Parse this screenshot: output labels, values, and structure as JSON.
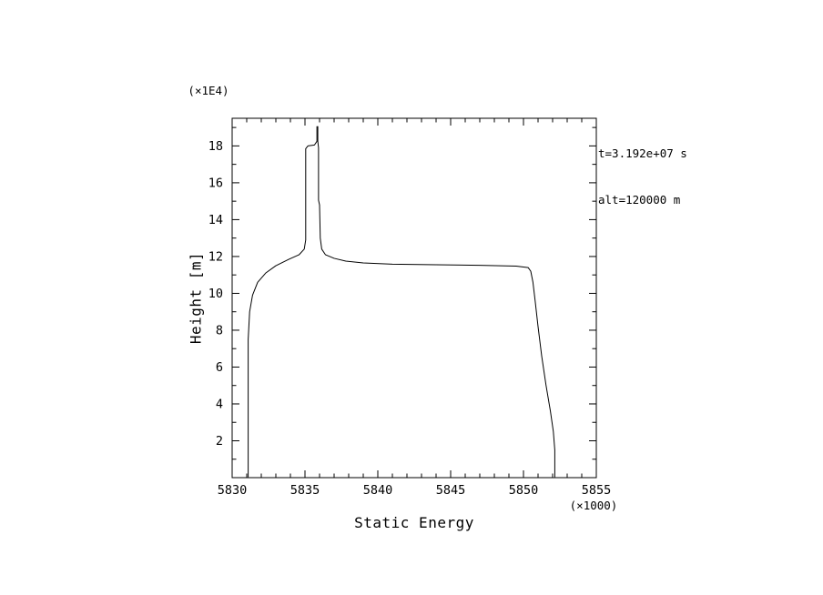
{
  "chart_data": {
    "type": "line",
    "title": "",
    "xlabel": "Static Energy",
    "ylabel": "Height [m]",
    "x_scale_label": "(×1000)",
    "y_scale_label": "(×1E4)",
    "annotations": {
      "line1": "t=3.192e+07 s",
      "line2": "alt=120000 m"
    },
    "xlim": [
      5830,
      5855
    ],
    "ylim": [
      0,
      19.5
    ],
    "x_major_ticks": [
      5830,
      5835,
      5840,
      5845,
      5850,
      5855
    ],
    "x_minor_step": 1,
    "y_major_ticks": [
      2,
      4,
      6,
      8,
      10,
      12,
      14,
      16,
      18
    ],
    "y_minor_step": 1,
    "grid": false,
    "legend_position": "none",
    "line_color": "#000000",
    "background_color": "#ffffff",
    "series": [
      {
        "name": "static-energy-profile-left",
        "points": [
          [
            5831.1,
            0.05
          ],
          [
            5831.1,
            7.5
          ],
          [
            5831.2,
            9.0
          ],
          [
            5831.4,
            9.9
          ],
          [
            5831.75,
            10.6
          ],
          [
            5832.3,
            11.1
          ],
          [
            5833.0,
            11.5
          ],
          [
            5833.9,
            11.85
          ],
          [
            5834.6,
            12.1
          ],
          [
            5834.95,
            12.4
          ],
          [
            5835.05,
            12.9
          ],
          [
            5835.05,
            17.85
          ],
          [
            5835.2,
            18.0
          ],
          [
            5835.65,
            18.05
          ],
          [
            5835.82,
            18.25
          ],
          [
            5835.82,
            19.05
          ]
        ]
      },
      {
        "name": "static-energy-profile-right",
        "points": [
          [
            5852.15,
            0.05
          ],
          [
            5852.15,
            1.5
          ],
          [
            5852.05,
            2.5
          ],
          [
            5851.85,
            3.6
          ],
          [
            5851.55,
            5.0
          ],
          [
            5851.25,
            6.6
          ],
          [
            5851.0,
            8.2
          ],
          [
            5850.8,
            9.6
          ],
          [
            5850.65,
            10.6
          ],
          [
            5850.5,
            11.2
          ],
          [
            5850.32,
            11.4
          ],
          [
            5849.5,
            11.48
          ],
          [
            5847.0,
            11.52
          ],
          [
            5844.0,
            11.55
          ],
          [
            5841.0,
            11.58
          ],
          [
            5839.0,
            11.65
          ],
          [
            5837.8,
            11.75
          ],
          [
            5837.0,
            11.9
          ],
          [
            5836.4,
            12.1
          ],
          [
            5836.15,
            12.4
          ],
          [
            5836.05,
            13.0
          ],
          [
            5836.0,
            14.8
          ],
          [
            5835.93,
            15.05
          ],
          [
            5835.93,
            17.9
          ],
          [
            5835.88,
            18.25
          ],
          [
            5835.88,
            19.05
          ]
        ]
      }
    ]
  }
}
